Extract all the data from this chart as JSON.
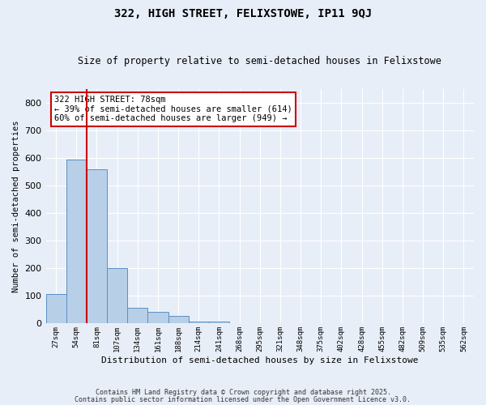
{
  "title": "322, HIGH STREET, FELIXSTOWE, IP11 9QJ",
  "subtitle": "Size of property relative to semi-detached houses in Felixstowe",
  "xlabel": "Distribution of semi-detached houses by size in Felixstowe",
  "ylabel": "Number of semi-detached properties",
  "bar_values": [
    107,
    595,
    557,
    200,
    57,
    43,
    27,
    8,
    7,
    0,
    0,
    0,
    0,
    0,
    0,
    0,
    0,
    0,
    0,
    0,
    0
  ],
  "categories": [
    "27sqm",
    "54sqm",
    "81sqm",
    "107sqm",
    "134sqm",
    "161sqm",
    "188sqm",
    "214sqm",
    "241sqm",
    "268sqm",
    "295sqm",
    "321sqm",
    "348sqm",
    "375sqm",
    "402sqm",
    "428sqm",
    "455sqm",
    "482sqm",
    "509sqm",
    "535sqm",
    "562sqm"
  ],
  "bar_color": "#b8cfe8",
  "bar_edge_color": "#5a8fc2",
  "vline_x": 1.5,
  "vline_color": "#cc0000",
  "annotation_text": "322 HIGH STREET: 78sqm\n← 39% of semi-detached houses are smaller (614)\n60% of semi-detached houses are larger (949) →",
  "annotation_box_color": "#ffffff",
  "annotation_box_edge": "#cc0000",
  "bg_color": "#e8eef8",
  "grid_color": "#ffffff",
  "ylim": [
    0,
    850
  ],
  "yticks": [
    0,
    100,
    200,
    300,
    400,
    500,
    600,
    700,
    800
  ],
  "footer1": "Contains HM Land Registry data © Crown copyright and database right 2025.",
  "footer2": "Contains public sector information licensed under the Open Government Licence v3.0."
}
